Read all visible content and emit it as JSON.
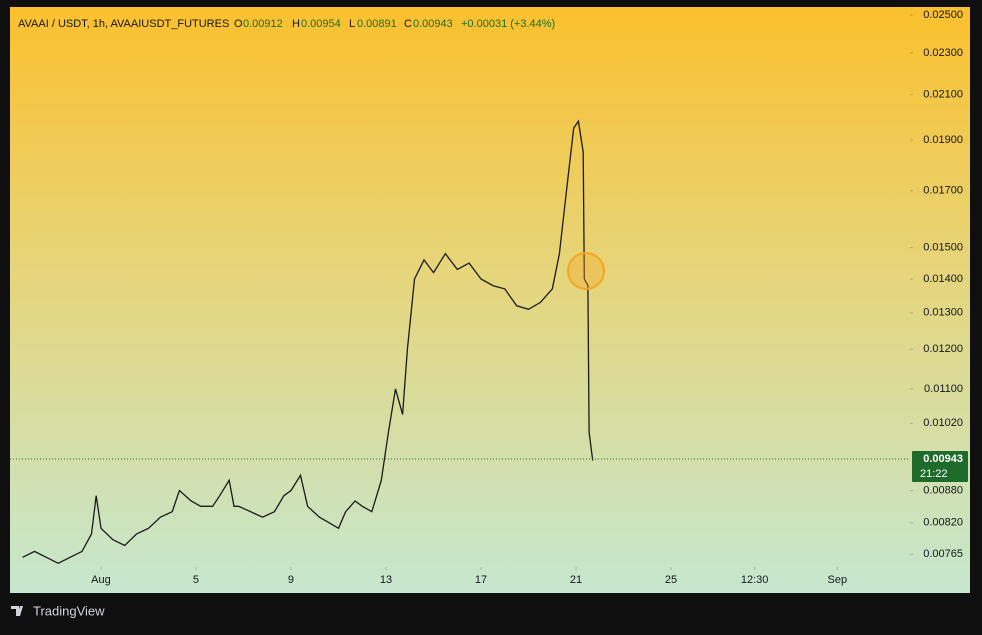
{
  "header": {
    "symbol": "AVAAI / USDT, 1h, AVAAIUSDT_FUTURES",
    "open_label": "O",
    "open": "0.00912",
    "high_label": "H",
    "high": "0.00954",
    "low_label": "L",
    "low": "0.00891",
    "close_label": "C",
    "close": "0.00943",
    "change": "+0.00031 (+3.44%)"
  },
  "footer": {
    "brand": "TradingView"
  },
  "chart_data": {
    "type": "line",
    "log_scale": true,
    "grid": false,
    "color": "#1a1a1a",
    "x": [
      -2.3,
      -1.8,
      -1.3,
      -0.8,
      -0.3,
      0.2,
      0.6,
      0.8,
      1.0,
      1.5,
      2.0,
      2.5,
      3.0,
      3.5,
      4.0,
      4.3,
      4.8,
      5.2,
      5.7,
      6.0,
      6.4,
      6.6,
      6.8,
      7.3,
      7.8,
      8.3,
      8.7,
      9.0,
      9.4,
      9.7,
      10.2,
      10.6,
      11.0,
      11.3,
      11.7,
      12.0,
      12.4,
      12.8,
      13.1,
      13.4,
      13.7,
      13.9,
      14.2,
      14.6,
      15.0,
      15.5,
      16.0,
      16.5,
      17.0,
      17.5,
      18.0,
      18.5,
      19.0,
      19.5,
      20.0,
      20.3,
      20.6,
      20.9,
      21.1,
      21.3,
      21.35,
      21.5,
      21.55,
      21.7
    ],
    "series": [
      {
        "values": [
          0.0076,
          0.0077,
          0.0076,
          0.0075,
          0.0076,
          0.0077,
          0.008,
          0.0087,
          0.0081,
          0.0079,
          0.0078,
          0.008,
          0.0081,
          0.0083,
          0.0084,
          0.0088,
          0.0086,
          0.0085,
          0.0085,
          0.0087,
          0.009,
          0.0085,
          0.0085,
          0.0084,
          0.0083,
          0.0084,
          0.0087,
          0.0088,
          0.0091,
          0.0085,
          0.0083,
          0.0082,
          0.0081,
          0.0084,
          0.0086,
          0.0085,
          0.0084,
          0.009,
          0.01,
          0.011,
          0.0104,
          0.012,
          0.014,
          0.0146,
          0.0142,
          0.0148,
          0.0143,
          0.0145,
          0.014,
          0.0138,
          0.0137,
          0.0132,
          0.0131,
          0.0133,
          0.0137,
          0.0148,
          0.017,
          0.0195,
          0.0198,
          0.0185,
          0.014,
          0.0138,
          0.01,
          0.0094
        ]
      }
    ],
    "xlim": [
      -2.83,
      35.06
    ],
    "xticks": [
      {
        "value": 1,
        "label": "Aug"
      },
      5,
      9,
      13,
      17,
      21,
      25,
      {
        "value": 28.52,
        "label": "12:30"
      },
      {
        "value": 32,
        "label": "Sep"
      }
    ],
    "ylim": [
      0.00744,
      0.02544
    ],
    "yticks": [
      {
        "value": 0.025,
        "label": "0.02500"
      },
      {
        "value": 0.023,
        "label": "0.02300"
      },
      {
        "value": 0.021,
        "label": "0.02100"
      },
      {
        "value": 0.019,
        "label": "0.01900"
      },
      {
        "value": 0.017,
        "label": "0.01700"
      },
      {
        "value": 0.015,
        "label": "0.01500"
      },
      {
        "value": 0.014,
        "label": "0.01400"
      },
      {
        "value": 0.013,
        "label": "0.01300"
      },
      {
        "value": 0.012,
        "label": "0.01200"
      },
      {
        "value": 0.011,
        "label": "0.01100"
      },
      {
        "value": 0.0102,
        "label": "0.01020"
      },
      {
        "value": 0.0088,
        "label": "0.00880"
      },
      {
        "value": 0.0082,
        "label": "0.00820"
      },
      {
        "value": 0.00765,
        "label": "0.00765"
      }
    ],
    "last_price": {
      "value": 0.00943,
      "label": "0.00943"
    },
    "countdown": "21:22"
  }
}
